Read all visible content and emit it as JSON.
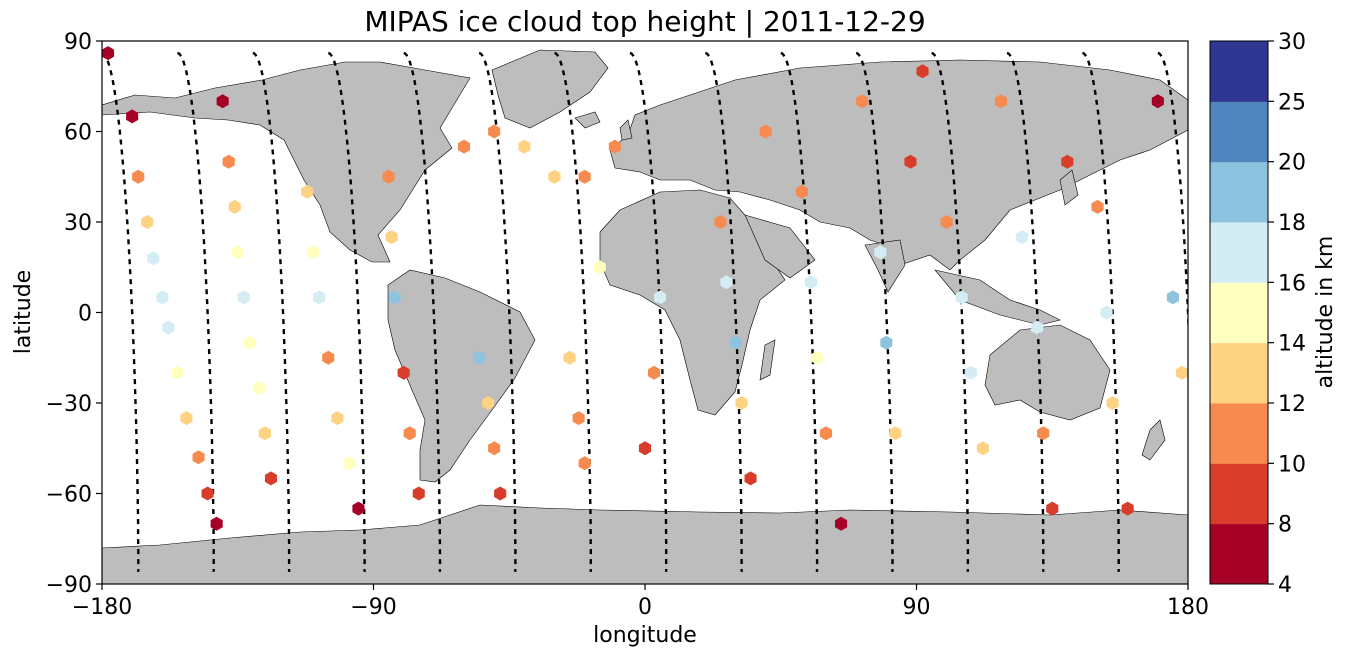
{
  "chart_data": {
    "type": "scatter",
    "title": "MIPAS ice cloud top height | 2011-12-29",
    "xlabel": "longitude",
    "ylabel": "latitude",
    "xlim": [
      -180,
      180
    ],
    "ylim": [
      -90,
      90
    ],
    "xticks": [
      -180,
      -90,
      0,
      90,
      180
    ],
    "yticks": [
      -90,
      -60,
      -30,
      0,
      30,
      60,
      90
    ],
    "xtick_labels": [
      "−180",
      "−90",
      "0",
      "90",
      "180"
    ],
    "ytick_labels": [
      "−90",
      "−60",
      "−30",
      "0",
      "30",
      "60",
      "90"
    ],
    "grid": false,
    "projection": "plate carree, gray land mask",
    "colorbar": {
      "label": "altitude in km",
      "boundaries": [
        4,
        8,
        10,
        12,
        14,
        16,
        18,
        20,
        25,
        30
      ],
      "tick_labels": [
        "4",
        "8",
        "10",
        "12",
        "14",
        "16",
        "18",
        "20",
        "25",
        "30"
      ],
      "colors": [
        "#a50026",
        "#d73027",
        "#f46d43",
        "#fdae61",
        "#fee090",
        "#e0f3f8",
        "#abd9e9",
        "#74add1",
        "#4575b4",
        "#313695"
      ],
      "display_colors": [
        "#a50026",
        "#d73d2a",
        "#f78b4f",
        "#fdd283",
        "#ffffbf",
        "#d4ecf4",
        "#8dc3df",
        "#5086bd",
        "#303792"
      ]
    },
    "orbit_track": {
      "style": "black dashed",
      "amplitude_deg_lat": 86,
      "lon_shift_per_half_orbit": 25
    },
    "series": [
      {
        "color_by": "altitude_km",
        "description": "cloud detections along descending and ascending orbit legs",
        "points": [
          {
            "lon": -178,
            "lat": 86,
            "alt": 6
          },
          {
            "lon": -170,
            "lat": 65,
            "alt": 6
          },
          {
            "lon": -168,
            "lat": 45,
            "alt": 10
          },
          {
            "lon": -165,
            "lat": 30,
            "alt": 13
          },
          {
            "lon": -163,
            "lat": 18,
            "alt": 16
          },
          {
            "lon": -160,
            "lat": 5,
            "alt": 17
          },
          {
            "lon": -158,
            "lat": -5,
            "alt": 16
          },
          {
            "lon": -155,
            "lat": -20,
            "alt": 15
          },
          {
            "lon": -152,
            "lat": -35,
            "alt": 13
          },
          {
            "lon": -148,
            "lat": -48,
            "alt": 11
          },
          {
            "lon": -145,
            "lat": -60,
            "alt": 9
          },
          {
            "lon": -142,
            "lat": -70,
            "alt": 6
          },
          {
            "lon": -140,
            "lat": 70,
            "alt": 6
          },
          {
            "lon": -138,
            "lat": 50,
            "alt": 10
          },
          {
            "lon": -136,
            "lat": 35,
            "alt": 13
          },
          {
            "lon": -135,
            "lat": 20,
            "alt": 15
          },
          {
            "lon": -133,
            "lat": 5,
            "alt": 16
          },
          {
            "lon": -131,
            "lat": -10,
            "alt": 15
          },
          {
            "lon": -128,
            "lat": -25,
            "alt": 14
          },
          {
            "lon": -126,
            "lat": -40,
            "alt": 12
          },
          {
            "lon": -124,
            "lat": -55,
            "alt": 9
          },
          {
            "lon": -112,
            "lat": 40,
            "alt": 13
          },
          {
            "lon": -110,
            "lat": 20,
            "alt": 15
          },
          {
            "lon": -108,
            "lat": 5,
            "alt": 17
          },
          {
            "lon": -105,
            "lat": -15,
            "alt": 11
          },
          {
            "lon": -102,
            "lat": -35,
            "alt": 12
          },
          {
            "lon": -98,
            "lat": -50,
            "alt": 14
          },
          {
            "lon": -95,
            "lat": -65,
            "alt": 6
          },
          {
            "lon": -85,
            "lat": 45,
            "alt": 10
          },
          {
            "lon": -84,
            "lat": 25,
            "alt": 13
          },
          {
            "lon": -83,
            "lat": 5,
            "alt": 18
          },
          {
            "lon": -80,
            "lat": -20,
            "alt": 9
          },
          {
            "lon": -78,
            "lat": -40,
            "alt": 10
          },
          {
            "lon": -75,
            "lat": -60,
            "alt": 9
          },
          {
            "lon": -60,
            "lat": 55,
            "alt": 10
          },
          {
            "lon": -50,
            "lat": 60,
            "alt": 11
          },
          {
            "lon": -40,
            "lat": 55,
            "alt": 12
          },
          {
            "lon": -30,
            "lat": 45,
            "alt": 12
          },
          {
            "lon": -20,
            "lat": 45,
            "alt": 10
          },
          {
            "lon": -10,
            "lat": 55,
            "alt": 11
          },
          {
            "lon": -55,
            "lat": -15,
            "alt": 18
          },
          {
            "lon": -52,
            "lat": -30,
            "alt": 13
          },
          {
            "lon": -50,
            "lat": -45,
            "alt": 11
          },
          {
            "lon": -48,
            "lat": -60,
            "alt": 8
          },
          {
            "lon": -25,
            "lat": -15,
            "alt": 13
          },
          {
            "lon": -22,
            "lat": -35,
            "alt": 11
          },
          {
            "lon": -20,
            "lat": -50,
            "alt": 10
          },
          {
            "lon": -15,
            "lat": 15,
            "alt": 15
          },
          {
            "lon": 5,
            "lat": 5,
            "alt": 17
          },
          {
            "lon": 3,
            "lat": -20,
            "alt": 10
          },
          {
            "lon": 0,
            "lat": -45,
            "alt": 8
          },
          {
            "lon": 25,
            "lat": 30,
            "alt": 11
          },
          {
            "lon": 27,
            "lat": 10,
            "alt": 17
          },
          {
            "lon": 30,
            "lat": -10,
            "alt": 18
          },
          {
            "lon": 32,
            "lat": -30,
            "alt": 13
          },
          {
            "lon": 35,
            "lat": -55,
            "alt": 9
          },
          {
            "lon": 40,
            "lat": 60,
            "alt": 10
          },
          {
            "lon": 52,
            "lat": 40,
            "alt": 11
          },
          {
            "lon": 55,
            "lat": 10,
            "alt": 17
          },
          {
            "lon": 57,
            "lat": -15,
            "alt": 14
          },
          {
            "lon": 60,
            "lat": -40,
            "alt": 11
          },
          {
            "lon": 65,
            "lat": -70,
            "alt": 6
          },
          {
            "lon": 72,
            "lat": 70,
            "alt": 10
          },
          {
            "lon": 78,
            "lat": 20,
            "alt": 16
          },
          {
            "lon": 80,
            "lat": -10,
            "alt": 18
          },
          {
            "lon": 83,
            "lat": -40,
            "alt": 12
          },
          {
            "lon": 88,
            "lat": 50,
            "alt": 9
          },
          {
            "lon": 92,
            "lat": 80,
            "alt": 9
          },
          {
            "lon": 100,
            "lat": 30,
            "alt": 11
          },
          {
            "lon": 105,
            "lat": 5,
            "alt": 17
          },
          {
            "lon": 108,
            "lat": -20,
            "alt": 16
          },
          {
            "lon": 112,
            "lat": -45,
            "alt": 12
          },
          {
            "lon": 118,
            "lat": 70,
            "alt": 10
          },
          {
            "lon": 125,
            "lat": 25,
            "alt": 16
          },
          {
            "lon": 130,
            "lat": -5,
            "alt": 16
          },
          {
            "lon": 132,
            "lat": -40,
            "alt": 11
          },
          {
            "lon": 135,
            "lat": -65,
            "alt": 8
          },
          {
            "lon": 140,
            "lat": 50,
            "alt": 9
          },
          {
            "lon": 150,
            "lat": 35,
            "alt": 11
          },
          {
            "lon": 153,
            "lat": 0,
            "alt": 16
          },
          {
            "lon": 155,
            "lat": -30,
            "alt": 13
          },
          {
            "lon": 160,
            "lat": -65,
            "alt": 8
          },
          {
            "lon": 170,
            "lat": 70,
            "alt": 6
          },
          {
            "lon": 175,
            "lat": 5,
            "alt": 18
          },
          {
            "lon": 178,
            "lat": -20,
            "alt": 13
          }
        ]
      }
    ]
  }
}
